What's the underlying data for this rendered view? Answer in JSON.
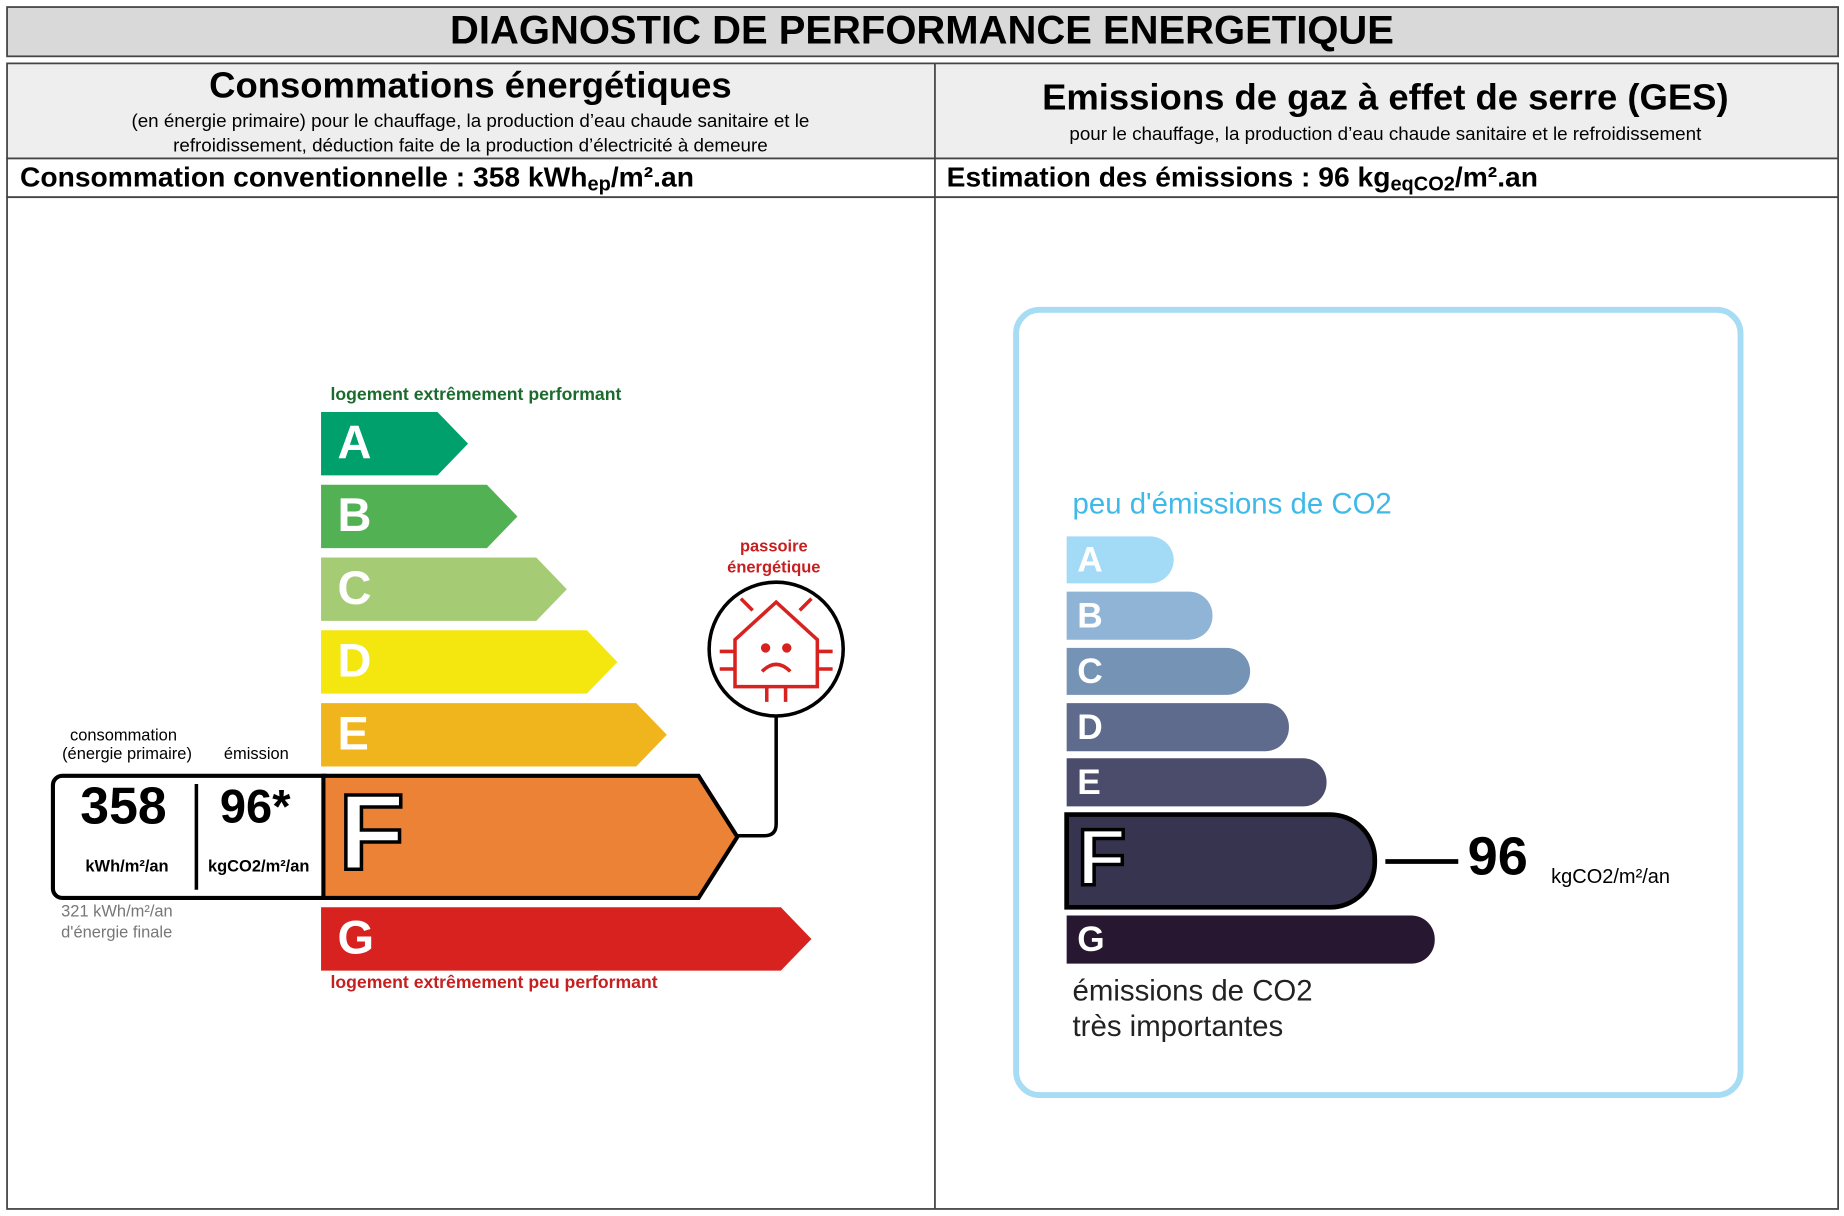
{
  "header": {
    "title": "DIAGNOSTIC DE PERFORMANCE ENERGETIQUE"
  },
  "energy": {
    "heading": "Consommations énergétiques",
    "subheading_lines": [
      "(en énergie primaire) pour le chauffage, la production d’eau chaude sanitaire et le",
      "refroidissement, déduction faite de la production d’électricité à demeure"
    ],
    "summary": {
      "text": "Consommation conventionnelle : 358 kWh",
      "sub": "ep",
      "unit": "/m².an"
    },
    "label": {
      "top_note": "logement extrêmement performant",
      "bottom_note": "logement extrêmement peu performant",
      "classes": [
        "A",
        "B",
        "C",
        "D",
        "E",
        "F",
        "G"
      ],
      "consumption_caption_lines": [
        "consommation",
        "(énergie primaire)"
      ],
      "emission_caption": "émission",
      "consumption_value": "358",
      "consumption_unit": "kWh/m²/an",
      "emission_value": "96*",
      "emission_unit": "kgCO2/m²/an",
      "final_energy_lines": [
        "321 kWh/m²/an",
        "d'énergie finale"
      ],
      "alert_lines": [
        "passoire",
        "énergétique"
      ]
    }
  },
  "ghg": {
    "heading": "Emissions de gaz à effet de serre (GES)",
    "subheading": "pour le chauffage, la production d’eau chaude sanitaire et le refroidissement",
    "summary": {
      "text": "Estimation des émissions : 96 kg",
      "sub": "eqCO2",
      "unit": "/m².an"
    },
    "label": {
      "top_note": "peu d'émissions de CO2",
      "classes": [
        "A",
        "B",
        "C",
        "D",
        "E",
        "F",
        "G"
      ],
      "value": "96",
      "unit": "kgCO2/m²/an",
      "bottom_note_lines": [
        "émissions de CO2",
        "très importantes"
      ]
    }
  }
}
